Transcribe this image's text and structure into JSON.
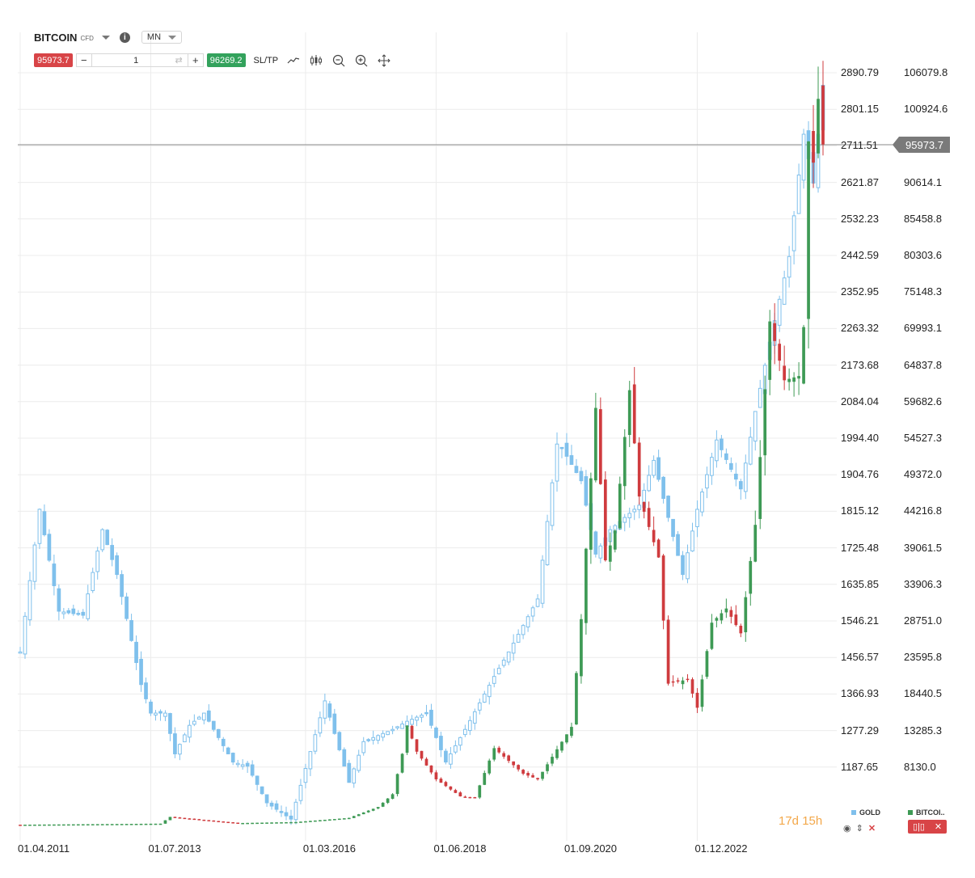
{
  "header": {
    "symbol": "BITCOIN",
    "badge": "CFD",
    "info_icon": "info-icon",
    "timeframe": "MN"
  },
  "trade_bar": {
    "sell_price": "95973.7",
    "minus": "−",
    "quantity": "1",
    "plus": "+",
    "buy_price": "96269.2",
    "sltp_label": "SL/TP",
    "tools": [
      "line-chart-icon",
      "candles-icon",
      "zoom-out-icon",
      "zoom-in-icon",
      "move-icon"
    ]
  },
  "axis": {
    "gold_ticks": [
      "2890.79",
      "2801.15",
      "2711.51",
      "2621.87",
      "2532.23",
      "2442.59",
      "2352.95",
      "2263.32",
      "2173.68",
      "2084.04",
      "1994.40",
      "1904.76",
      "1815.12",
      "1725.48",
      "1635.85",
      "1546.21",
      "1456.57",
      "1366.93",
      "1277.29",
      "1187.65"
    ],
    "btc_ticks": [
      "106079.8",
      "100924.6",
      "",
      "90614.1",
      "85458.8",
      "80303.6",
      "75148.3",
      "69993.1",
      "64837.8",
      "59682.6",
      "54527.3",
      "49372.0",
      "44216.8",
      "39061.5",
      "33906.3",
      "28751.0",
      "23595.8",
      "18440.5",
      "13285.3",
      "8130.0"
    ],
    "last_price": "95973.7",
    "last_gold_label": "2711.51",
    "x_labels": [
      "01.04.2011",
      "01.07.2013",
      "01.03.2016",
      "01.06.2018",
      "01.09.2020",
      "01.12.2022"
    ]
  },
  "footer": {
    "countdown": "17d 15h",
    "gold_legend": "GOLD",
    "btc_legend": "BITCOI..",
    "eye_icon": "eye-icon",
    "updown_icon": "sort-icon",
    "close_icon": "close-icon"
  },
  "colors": {
    "gold_series": "#7fc0ec",
    "up": "#3e9a55",
    "down": "#cf3b3e",
    "grid": "#ececec",
    "last_line": "#8a8a8a"
  },
  "chart_data": {
    "type": "candlestick",
    "series": [
      {
        "name": "GOLD",
        "scale": "left",
        "anchors": [
          [
            "2011-04",
            1470
          ],
          [
            "2011-08",
            1820
          ],
          [
            "2011-12",
            1570
          ],
          [
            "2012-05",
            1560
          ],
          [
            "2012-09",
            1770
          ],
          [
            "2012-12",
            1660
          ],
          [
            "2013-05",
            1390
          ],
          [
            "2013-07",
            1320
          ],
          [
            "2013-10",
            1320
          ],
          [
            "2013-12",
            1220
          ],
          [
            "2014-03",
            1290
          ],
          [
            "2014-06",
            1320
          ],
          [
            "2014-12",
            1200
          ],
          [
            "2015-03",
            1190
          ],
          [
            "2015-07",
            1100
          ],
          [
            "2015-12",
            1060
          ],
          [
            "2016-07",
            1350
          ],
          [
            "2016-12",
            1150
          ],
          [
            "2017-03",
            1250
          ],
          [
            "2017-09",
            1280
          ],
          [
            "2017-12",
            1300
          ],
          [
            "2018-04",
            1320
          ],
          [
            "2018-08",
            1200
          ],
          [
            "2018-12",
            1280
          ],
          [
            "2019-06",
            1410
          ],
          [
            "2019-09",
            1470
          ],
          [
            "2020-03",
            1600
          ],
          [
            "2020-07",
            1980
          ],
          [
            "2020-08",
            1970
          ],
          [
            "2020-12",
            1890
          ],
          [
            "2021-03",
            1710
          ],
          [
            "2021-06",
            1770
          ],
          [
            "2021-12",
            1830
          ],
          [
            "2022-03",
            1940
          ],
          [
            "2022-09",
            1660
          ],
          [
            "2022-12",
            1820
          ],
          [
            "2023-04",
            1990
          ],
          [
            "2023-09",
            1870
          ],
          [
            "2023-12",
            2060
          ],
          [
            "2024-03",
            2230
          ],
          [
            "2024-07",
            2440
          ],
          [
            "2024-10",
            2740
          ],
          [
            "2024-12",
            2620
          ],
          [
            "2025-02",
            2860
          ]
        ]
      },
      {
        "name": "BITCOIN",
        "scale": "right",
        "anchors": [
          [
            "2011-04",
            0
          ],
          [
            "2013-09",
            150
          ],
          [
            "2013-11",
            1100
          ],
          [
            "2014-06",
            650
          ],
          [
            "2015-01",
            230
          ],
          [
            "2016-01",
            380
          ],
          [
            "2016-12",
            960
          ],
          [
            "2017-06",
            2500
          ],
          [
            "2017-09",
            4300
          ],
          [
            "2017-11",
            10000
          ],
          [
            "2017-12",
            14000
          ],
          [
            "2018-02",
            10300
          ],
          [
            "2018-06",
            6400
          ],
          [
            "2018-11",
            4000
          ],
          [
            "2019-02",
            3800
          ],
          [
            "2019-06",
            10800
          ],
          [
            "2019-12",
            7200
          ],
          [
            "2020-03",
            6400
          ],
          [
            "2020-08",
            11700
          ],
          [
            "2020-10",
            13800
          ],
          [
            "2020-12",
            29000
          ],
          [
            "2021-03",
            58800
          ],
          [
            "2021-05",
            37300
          ],
          [
            "2021-07",
            41500
          ],
          [
            "2021-10",
            61300
          ],
          [
            "2021-12",
            46300
          ],
          [
            "2022-04",
            37700
          ],
          [
            "2022-06",
            19900
          ],
          [
            "2022-10",
            20500
          ],
          [
            "2022-12",
            16500
          ],
          [
            "2023-03",
            28500
          ],
          [
            "2023-06",
            30500
          ],
          [
            "2023-09",
            27000
          ],
          [
            "2023-12",
            42300
          ],
          [
            "2024-03",
            71000
          ],
          [
            "2024-06",
            62700
          ],
          [
            "2024-09",
            63300
          ],
          [
            "2024-10",
            70200
          ],
          [
            "2024-11",
            96400
          ],
          [
            "2024-12",
            93400
          ],
          [
            "2025-01",
            102400
          ],
          [
            "2025-02",
            95973.7
          ]
        ]
      }
    ]
  }
}
